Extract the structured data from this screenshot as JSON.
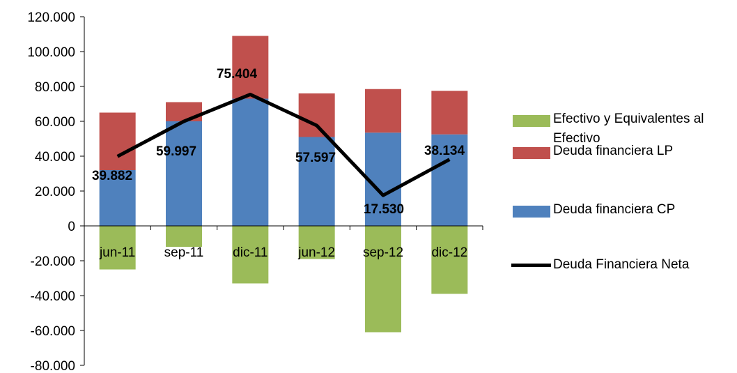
{
  "chart_data": {
    "type": "bar",
    "stacked": true,
    "categories": [
      "jun-11",
      "sep-11",
      "dic-11",
      "jun-12",
      "sep-12",
      "dic-12"
    ],
    "series": [
      {
        "name": "Efectivo y Equivalentes al Efectivo",
        "kind": "bar",
        "color": "#9BBB59",
        "values": [
          -25000,
          -12000,
          -33000,
          -19000,
          -61000,
          -39000
        ]
      },
      {
        "name": "Deuda financiera LP",
        "kind": "bar",
        "color": "#C0504D",
        "values": [
          33000,
          11000,
          36000,
          25000,
          25000,
          25000
        ]
      },
      {
        "name": "Deuda financiera CP",
        "kind": "bar",
        "color": "#4F81BD",
        "values": [
          32000,
          60000,
          73000,
          51000,
          53500,
          52500
        ]
      },
      {
        "name": "Deuda Financiera Neta",
        "kind": "line",
        "color": "#000000",
        "values": [
          39882,
          59997,
          75404,
          57597,
          17530,
          38134
        ],
        "labels": [
          "39.882",
          "59.997",
          "75.404",
          "57.597",
          "17.530",
          "38.134"
        ]
      }
    ],
    "yticks": [
      "120.000",
      "100.000",
      "80.000",
      "60.000",
      "40.000",
      "20.000",
      "0",
      "-20.000",
      "-40.000",
      "-60.000",
      "-80.000"
    ],
    "ylim": [
      -80000,
      120000
    ],
    "grid": false,
    "legend_position": "right",
    "title": "",
    "xlabel": "",
    "ylabel": ""
  }
}
